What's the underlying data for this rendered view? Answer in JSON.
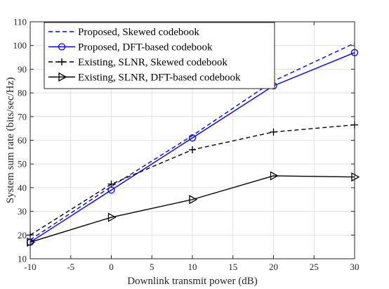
{
  "chart_data": {
    "type": "line",
    "title": "",
    "xlabel": "Downlink transmit power (dB)",
    "ylabel": "System sum rate (bits/sec/Hz)",
    "xlim": [
      -10,
      30
    ],
    "ylim": [
      10,
      110
    ],
    "xticks": [
      "-10",
      "-5",
      "0",
      "5",
      "10",
      "15",
      "20",
      "25",
      "30"
    ],
    "yticks": [
      "10",
      "20",
      "30",
      "40",
      "50",
      "60",
      "70",
      "80",
      "90",
      "100",
      "110"
    ],
    "grid": true,
    "legend_position": "top-left",
    "x": [
      -10,
      0,
      10,
      20,
      30
    ],
    "series": [
      {
        "name": "Proposed, Skewed codebook",
        "values": [
          18,
          40.5,
          62,
          85,
          101
        ],
        "color": "#0000ff",
        "line": "dashed",
        "marker": "none"
      },
      {
        "name": "Proposed, DFT-based codebook",
        "values": [
          17,
          39,
          61,
          83,
          97
        ],
        "color": "#0000ff",
        "line": "solid",
        "marker": "circle"
      },
      {
        "name": "Existing, SLNR, Skewed codebook",
        "values": [
          20,
          41.5,
          56,
          63.5,
          66.5
        ],
        "color": "#000000",
        "line": "dashed",
        "marker": "plus"
      },
      {
        "name": "Existing, SLNR, DFT-based codebook",
        "values": [
          17,
          27.5,
          35,
          45,
          44.5
        ],
        "color": "#000000",
        "line": "solid",
        "marker": "triangle-right"
      }
    ]
  }
}
